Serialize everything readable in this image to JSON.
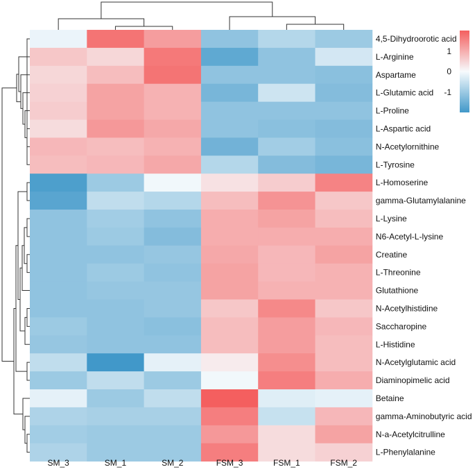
{
  "chart_data": {
    "type": "heatmap",
    "title": "",
    "columns": [
      "SM_3",
      "SM_1",
      "SM_2",
      "FSM_3",
      "FSM_1",
      "FSM_2"
    ],
    "rows": [
      "4,5-Dihydroorotic acid",
      "L-Arginine",
      "Aspartame",
      "L-Glutamic acid",
      "L-Proline",
      "L-Aspartic acid",
      "N-Acetylornithine",
      "L-Tyrosine",
      "L-Homoserine",
      "gamma-Glutamylalanine",
      "L-Lysine",
      "N6-Acetyl-L-lysine",
      "Creatine",
      "L-Threonine",
      "Glutathione",
      "N-Acetylhistidine",
      "Saccharopine",
      "L-Histidine",
      "N-Acetylglutamic acid",
      "Diaminopimelic acid",
      "Betaine",
      "gamma-Aminobutyric acid",
      "N-a-Acetylcitrulline",
      "L-Phenylalanine"
    ],
    "values": [
      [
        -0.1,
        1.3,
        0.9,
        -0.85,
        -0.55,
        -0.75
      ],
      [
        0.5,
        0.35,
        1.25,
        -1.25,
        -0.85,
        -0.3
      ],
      [
        0.35,
        0.6,
        1.3,
        -0.85,
        -0.85,
        -0.9
      ],
      [
        0.4,
        0.85,
        0.7,
        -1.05,
        -0.35,
        -0.95
      ],
      [
        0.45,
        0.85,
        0.7,
        -0.85,
        -0.85,
        -0.85
      ],
      [
        0.3,
        0.95,
        0.8,
        -0.85,
        -0.9,
        -0.95
      ],
      [
        0.65,
        0.6,
        0.7,
        -1.1,
        -0.7,
        -0.9
      ],
      [
        0.6,
        0.65,
        0.8,
        -0.55,
        -0.95,
        -1.05
      ],
      [
        -1.4,
        -0.75,
        -0.05,
        0.25,
        0.45,
        1.15
      ],
      [
        -1.3,
        -0.45,
        -0.55,
        0.6,
        1.0,
        0.5
      ],
      [
        -0.85,
        -0.7,
        -0.85,
        0.75,
        0.85,
        0.6
      ],
      [
        -0.85,
        -0.75,
        -0.95,
        0.75,
        0.75,
        0.75
      ],
      [
        -0.85,
        -0.85,
        -0.8,
        0.8,
        0.65,
        0.85
      ],
      [
        -0.85,
        -0.75,
        -0.85,
        0.85,
        0.65,
        0.7
      ],
      [
        -0.85,
        -0.8,
        -0.8,
        0.85,
        0.7,
        0.7
      ],
      [
        -0.85,
        -0.85,
        -0.8,
        0.5,
        1.1,
        0.5
      ],
      [
        -0.75,
        -0.85,
        -0.9,
        0.6,
        0.9,
        0.65
      ],
      [
        -0.8,
        -0.85,
        -0.85,
        0.6,
        0.9,
        0.6
      ],
      [
        -0.45,
        -1.55,
        -0.15,
        0.15,
        1.05,
        0.6
      ],
      [
        -0.75,
        -0.45,
        -0.75,
        -0.05,
        1.2,
        0.75
      ],
      [
        -0.15,
        -0.75,
        -0.45,
        1.5,
        -0.2,
        -0.15
      ],
      [
        -0.6,
        -0.65,
        -0.65,
        1.2,
        -0.4,
        0.65
      ],
      [
        -0.7,
        -0.75,
        -0.75,
        0.95,
        0.3,
        0.85
      ],
      [
        -0.6,
        -0.75,
        -0.75,
        1.2,
        0.3,
        0.4
      ]
    ],
    "scale": {
      "min": -1.5,
      "max": 1.5,
      "low_color": "#4198c9",
      "mid_color": "#f7fbfd",
      "high_color": "#f45f5f",
      "tick_labels": [
        "1",
        "0",
        "-1"
      ],
      "tick_values": [
        1,
        0,
        -1
      ]
    },
    "col_dendrogram": {
      "merges": [
        [
          0,
          1,
          2
        ],
        [
          3,
          4,
          5
        ]
      ]
    },
    "row_dendrogram": {
      "groups": [
        "upper block",
        "lower block"
      ]
    }
  }
}
